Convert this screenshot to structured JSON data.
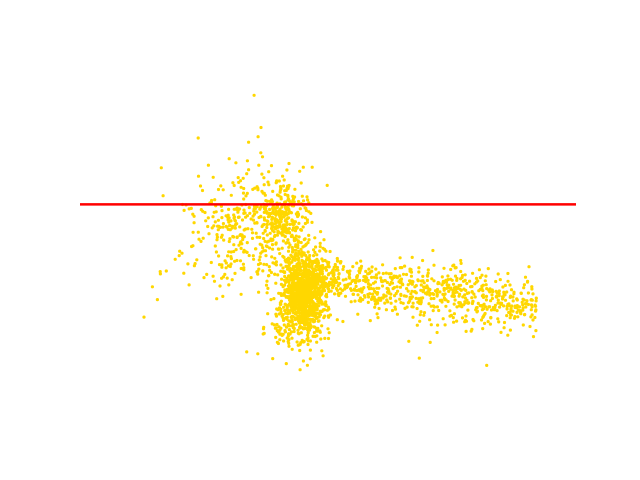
{
  "chart_data": {
    "type": "scatter",
    "title": "",
    "xlabel": "",
    "ylabel": "",
    "axes_visible": false,
    "grid": false,
    "xlim": [
      0,
      100
    ],
    "ylim": [
      0,
      100
    ],
    "series": [
      {
        "color": "#ffd700",
        "points": [
          [
            35.1,
            89.8
          ],
          [
            36.5,
            81.0
          ],
          [
            35.9,
            78.5
          ],
          [
            34.0,
            77.0
          ],
          [
            36.8,
            73.0
          ],
          [
            33.6,
            68.4
          ],
          [
            38.6,
            70.6
          ],
          [
            40.5,
            64.2
          ],
          [
            40.7,
            59.3
          ],
          [
            31.7,
            59.0
          ],
          [
            25.2,
            57.8
          ],
          [
            28.6,
            56.4
          ],
          [
            19.2,
            45.0
          ],
          [
            17.4,
            41.8
          ],
          [
            16.2,
            41.0
          ],
          [
            12.9,
            29.2
          ],
          [
            15.6,
            34.0
          ],
          [
            14.6,
            37.5
          ],
          [
            41.6,
            16.5
          ],
          [
            33.6,
            19.7
          ],
          [
            82.0,
            16.0
          ],
          [
            68.4,
            18.0
          ],
          [
            66.3,
            22.6
          ],
          [
            70.6,
            22.3
          ],
          [
            85.5,
            35.5
          ],
          [
            90.4,
            35.8
          ],
          [
            91.0,
            34.0
          ],
          [
            88.6,
            32.0
          ],
          [
            80.7,
            40.0
          ],
          [
            76.0,
            32.0
          ],
          [
            72.0,
            25.0
          ],
          [
            68.0,
            27.0
          ],
          [
            62.0,
            36.0
          ],
          [
            57.0,
            34.0
          ],
          [
            52.0,
            42.0
          ],
          [
            47.5,
            32.0
          ],
          [
            45.0,
            26.0
          ],
          [
            42.0,
            24.0
          ],
          [
            39.5,
            30.0
          ],
          [
            37.0,
            26.0
          ],
          [
            30.0,
            38.0
          ],
          [
            25.0,
            40.0
          ],
          [
            22.0,
            38.0
          ],
          [
            20.0,
            46.0
          ],
          [
            22.5,
            48.5
          ],
          [
            26.0,
            52.0
          ],
          [
            28.5,
            51.0
          ],
          [
            31.0,
            49.0
          ],
          [
            33.0,
            47.0
          ],
          [
            35.0,
            45.0
          ],
          [
            37.5,
            46.0
          ],
          [
            41.0,
            50.0
          ],
          [
            43.5,
            49.0
          ],
          [
            46.0,
            47.0
          ],
          [
            49.0,
            48.0
          ],
          [
            52.5,
            44.0
          ],
          [
            55.0,
            43.0
          ],
          [
            58.0,
            41.0
          ],
          [
            61.0,
            43.5
          ],
          [
            64.0,
            40.0
          ],
          [
            67.0,
            39.0
          ],
          [
            70.0,
            37.5
          ],
          [
            73.0,
            38.0
          ],
          [
            76.0,
            36.0
          ],
          [
            79.0,
            34.5
          ],
          [
            82.0,
            37.0
          ],
          [
            85.0,
            33.0
          ],
          [
            87.5,
            36.0
          ],
          [
            60.0,
            33.0
          ],
          [
            63.0,
            31.0
          ],
          [
            56.0,
            30.0
          ],
          [
            53.0,
            28.0
          ],
          [
            50.0,
            26.0
          ],
          [
            47.0,
            24.0
          ],
          [
            44.0,
            21.5
          ],
          [
            40.0,
            22.0
          ],
          [
            38.5,
            34.0
          ],
          [
            36.0,
            36.0
          ],
          [
            34.5,
            40.0
          ],
          [
            32.5,
            42.5
          ],
          [
            29.5,
            44.0
          ],
          [
            27.5,
            47.0
          ],
          [
            24.0,
            50.5
          ],
          [
            23.0,
            55.0
          ],
          [
            26.5,
            60.5
          ],
          [
            30.5,
            62.5
          ],
          [
            32.0,
            66.0
          ],
          [
            28.0,
            54.0
          ]
        ]
      }
    ],
    "reference_lines": [
      {
        "orientation": "horizontal",
        "y": 60,
        "color": "#ff0000"
      }
    ]
  }
}
